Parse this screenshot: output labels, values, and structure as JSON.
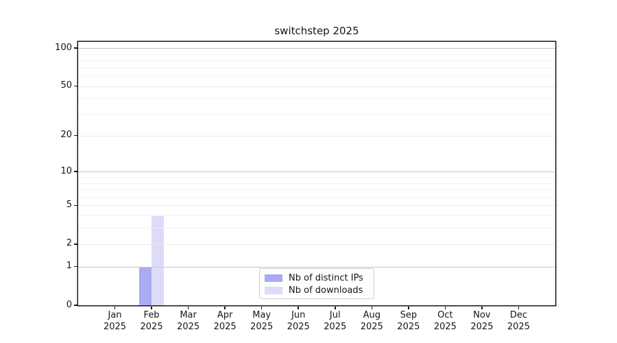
{
  "chart_data": {
    "type": "bar",
    "title": "switchstep 2025",
    "categories": [
      "Jan 2025",
      "Feb 2025",
      "Mar 2025",
      "Apr 2025",
      "May 2025",
      "Jun 2025",
      "Jul 2025",
      "Aug 2025",
      "Sep 2025",
      "Oct 2025",
      "Nov 2025",
      "Dec 2025"
    ],
    "series": [
      {
        "name": "Nb of distinct IPs",
        "color": "#aaaaf5",
        "values": [
          0,
          1,
          0,
          0,
          0,
          0,
          0,
          0,
          0,
          0,
          0,
          0
        ]
      },
      {
        "name": "Nb of downloads",
        "color": "#dcdcf9",
        "values": [
          0,
          4,
          0,
          0,
          0,
          0,
          0,
          0,
          0,
          0,
          0,
          0
        ]
      }
    ],
    "xlabel": "",
    "ylabel": "",
    "y_scale": "log1p",
    "ylim": [
      0,
      112
    ],
    "y_ticks": [
      0,
      1,
      2,
      5,
      10,
      20,
      50,
      100
    ],
    "y_minor_ticks": [
      3,
      4,
      6,
      7,
      8,
      9,
      30,
      40,
      60,
      70,
      80,
      90
    ],
    "grid": true,
    "grid_over_bars": true,
    "legend_position": "lower center"
  },
  "colors": {
    "distinct_ips": "#aaaaf5",
    "downloads": "#dcdcf9",
    "grid_emphasized": "#c5c5c9",
    "grid_major": "#e8e8e8",
    "grid_minor": "#f2f2f2",
    "axis": "#151515",
    "text": "#141414",
    "legend_border": "#cccccc"
  }
}
